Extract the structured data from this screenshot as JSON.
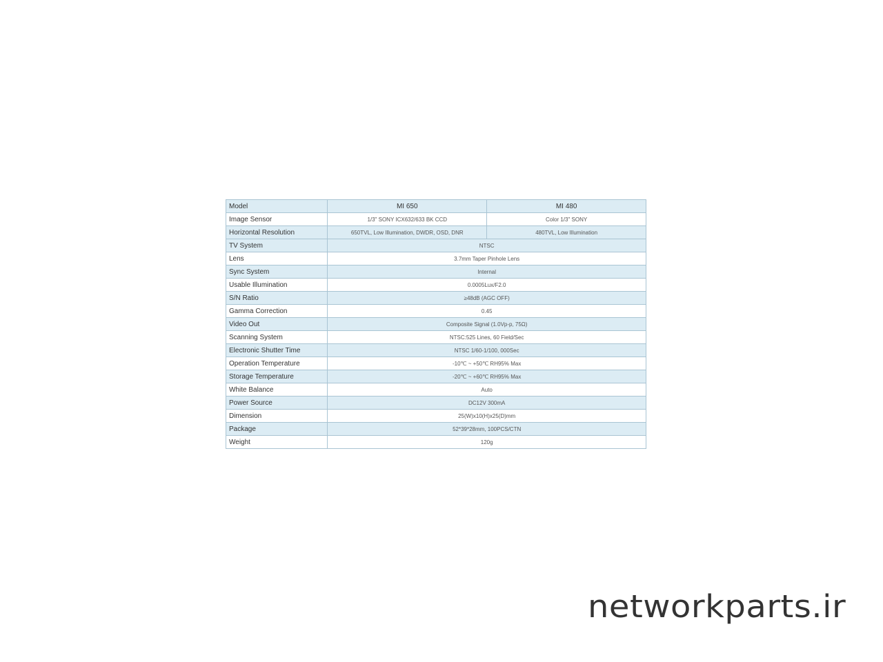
{
  "table": {
    "header": {
      "label": "Model",
      "col1": "MI 650",
      "col2": "MI 480"
    },
    "split_rows": [
      {
        "label": "Image Sensor",
        "col1": "1/3\" SONY ICX632/633 BK CCD",
        "col2": "Color 1/3\" SONY"
      },
      {
        "label": "Horizontal Resolution",
        "col1": "650TVL, Low Illumination, DWDR, OSD, DNR",
        "col2": "480TVL, Low Illumination"
      }
    ],
    "rows": [
      {
        "label": "TV System",
        "value": "NTSC"
      },
      {
        "label": "Lens",
        "value": "3.7mm Taper Pinhole Lens"
      },
      {
        "label": "Sync System",
        "value": "Internal"
      },
      {
        "label": "Usable Illumination",
        "value": "0.0005Lux/F2.0"
      },
      {
        "label": "S/N Ratio",
        "value": "≥48dB (AGC OFF)"
      },
      {
        "label": "Gamma Correction",
        "value": "0.45"
      },
      {
        "label": "Video Out",
        "value": "Composite Signal (1.0Vp-p, 75Ω)"
      },
      {
        "label": "Scanning System",
        "value": "NTSC:525 Lines, 60 Field/Sec"
      },
      {
        "label": "Electronic Shutter Time",
        "value": "NTSC 1/60-1/100, 000Sec"
      },
      {
        "label": "Operation  Temperature",
        "value": "-10℃ ~ +50℃ RH95% Max"
      },
      {
        "label": "Storage  Temperature",
        "value": "-20℃ ~ +60℃ RH95% Max"
      },
      {
        "label": "White Balance",
        "value": "Auto"
      },
      {
        "label": "Power Source",
        "value": "DC12V 300mA"
      },
      {
        "label": "Dimension",
        "value": "25(W)x10(H)x25(D)mm"
      },
      {
        "label": "Package",
        "value": "52*39*28mm, 100PCS/CTN"
      },
      {
        "label": "Weight",
        "value": "120g"
      }
    ]
  },
  "watermark": "networkparts.ir",
  "colors": {
    "row_blue": "#dcecf4",
    "border": "#a9c4d3"
  }
}
